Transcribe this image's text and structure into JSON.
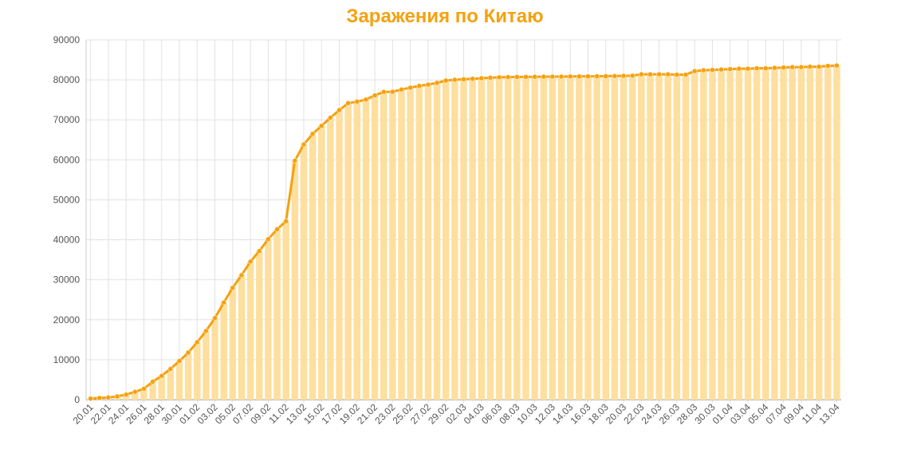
{
  "chart_data": {
    "type": "line",
    "title": "Заражения по Китаю",
    "categories": [
      "20.01",
      null,
      "22.01",
      null,
      "24.01",
      null,
      "26.01",
      null,
      "28.01",
      null,
      "30.01",
      null,
      "01.02",
      null,
      "03.02",
      null,
      "05.02",
      null,
      "07.02",
      null,
      "09.02",
      null,
      "11.02",
      null,
      "13.02",
      null,
      "15.02",
      null,
      "17.02",
      null,
      "19.02",
      null,
      "21.02",
      null,
      "23.02",
      null,
      "25.02",
      null,
      "27.02",
      null,
      "29.02",
      null,
      "02.03",
      null,
      "04.03",
      null,
      "06.03",
      null,
      "08.03",
      null,
      "10.03",
      null,
      "12.03",
      null,
      "14.03",
      null,
      "16.03",
      null,
      "18.03",
      null,
      "20.03",
      null,
      "22.03",
      null,
      "24.03",
      null,
      "26.03",
      null,
      "28.03",
      null,
      "30.03",
      null,
      "01.04",
      null,
      "03.04",
      null,
      "05.04",
      null,
      "07.04",
      null,
      "09.04",
      null,
      "11.04",
      null,
      "13.04"
    ],
    "values": [
      291,
      440,
      571,
      830,
      1287,
      1975,
      2744,
      4515,
      5974,
      7711,
      9692,
      11791,
      14380,
      17205,
      20438,
      24324,
      28018,
      31161,
      34546,
      37198,
      40171,
      42638,
      44653,
      59804,
      63851,
      66492,
      68500,
      70548,
      72436,
      74185,
      74576,
      75077,
      76119,
      76994,
      77027,
      77592,
      78061,
      78497,
      78824,
      79251,
      79824,
      80026,
      80151,
      80270,
      80409,
      80552,
      80651,
      80695,
      80735,
      80754,
      80778,
      80793,
      80813,
      80824,
      80844,
      80860,
      80881,
      80894,
      80928,
      80967,
      81008,
      81054,
      81400,
      81400,
      81400,
      81400,
      81300,
      81300,
      82200,
      82400,
      82500,
      82600,
      82700,
      82800,
      82800,
      82900,
      82900,
      83000,
      83100,
      83200,
      83200,
      83300,
      83300,
      83500,
      83600
    ],
    "color": "#f5a10f",
    "bars": true,
    "bar_color": "#fedf9e",
    "ylim": [
      0,
      90000
    ],
    "yticks": [
      0,
      10000,
      20000,
      30000,
      40000,
      50000,
      60000,
      70000,
      80000,
      90000
    ],
    "grid": true
  }
}
